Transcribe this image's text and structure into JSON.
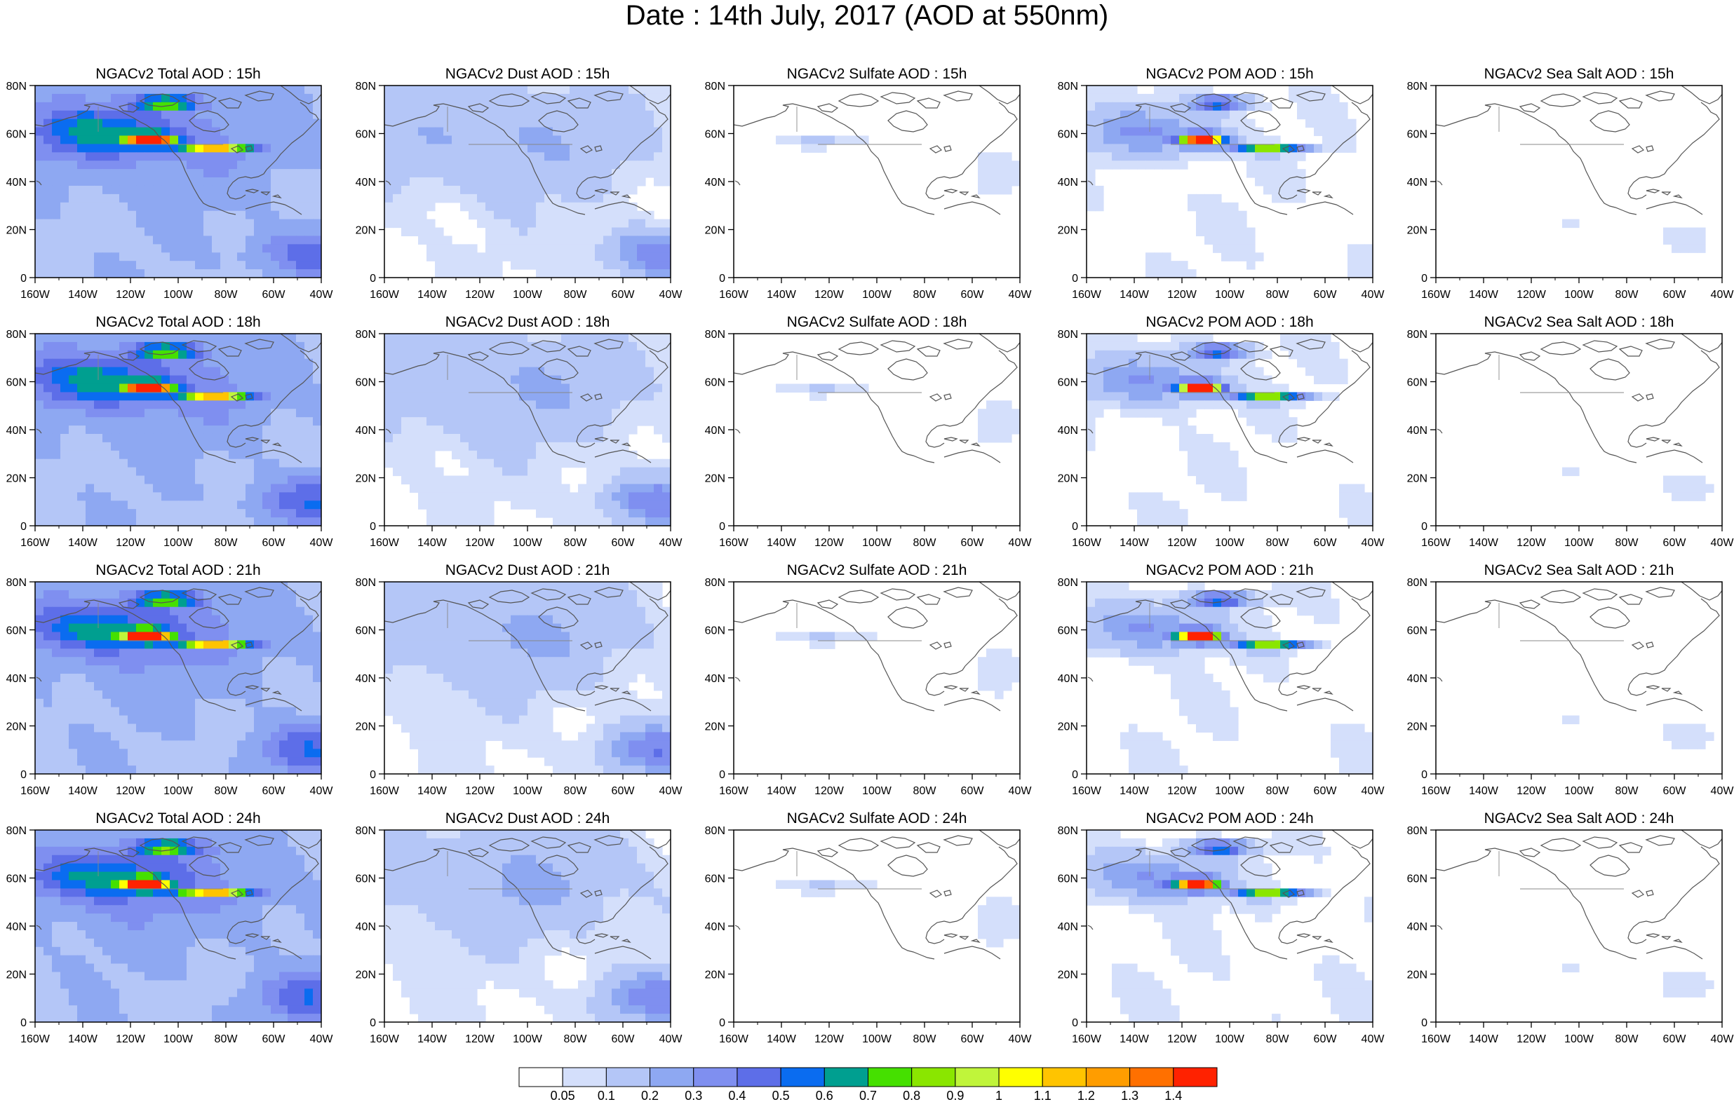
{
  "title": "Date : 14th July, 2017 (AOD at 550nm)",
  "species": [
    {
      "key": "total",
      "label": "Total"
    },
    {
      "key": "dust",
      "label": "Dust"
    },
    {
      "key": "sulfate",
      "label": "Sulfate"
    },
    {
      "key": "pom",
      "label": "POM"
    },
    {
      "key": "seasalt",
      "label": "Sea Salt"
    }
  ],
  "hours": [
    "15h",
    "18h",
    "21h",
    "24h"
  ],
  "panel_titles": [
    [
      "NGACv2 Total AOD : 15h",
      "NGACv2 Dust AOD : 15h",
      "NGACv2 Sulfate AOD : 15h",
      "NGACv2 POM AOD : 15h",
      "NGACv2 Sea Salt AOD : 15h"
    ],
    [
      "NGACv2 Total AOD : 18h",
      "NGACv2 Dust AOD : 18h",
      "NGACv2 Sulfate AOD : 18h",
      "NGACv2 POM AOD : 18h",
      "NGACv2 Sea Salt AOD : 18h"
    ],
    [
      "NGACv2 Total AOD : 21h",
      "NGACv2 Dust AOD : 21h",
      "NGACv2 Sulfate AOD : 21h",
      "NGACv2 POM AOD : 21h",
      "NGACv2 Sea Salt AOD : 21h"
    ],
    [
      "NGACv2 Total AOD : 24h",
      "NGACv2 Dust AOD : 24h",
      "NGACv2 Sulfate AOD : 24h",
      "NGACv2 POM AOD : 24h",
      "NGACv2 Sea Salt  AOD : 24h"
    ]
  ],
  "lon_ticks": [
    "160W",
    "140W",
    "120W",
    "100W",
    "80W",
    "60W",
    "40W"
  ],
  "lat_ticks": [
    "80N",
    "60N",
    "40N",
    "20N",
    "0"
  ],
  "lon_range": [
    -160,
    -40
  ],
  "lat_range": [
    0,
    80
  ],
  "colorbar": {
    "levels": [
      "0.05",
      "0.1",
      "0.2",
      "0.3",
      "0.4",
      "0.5",
      "0.6",
      "0.7",
      "0.8",
      "0.9",
      "1",
      "1.1",
      "1.2",
      "1.3",
      "1.4"
    ],
    "colors": [
      "#ffffff",
      "#d4dffb",
      "#b4c6f7",
      "#8ea8f2",
      "#7f8ff0",
      "#5d6ee8",
      "#0a6cf0",
      "#009f90",
      "#45e000",
      "#8ae600",
      "#c0f53a",
      "#ffff00",
      "#ffc400",
      "#ff9d00",
      "#ff7000",
      "#ff2200"
    ]
  }
}
